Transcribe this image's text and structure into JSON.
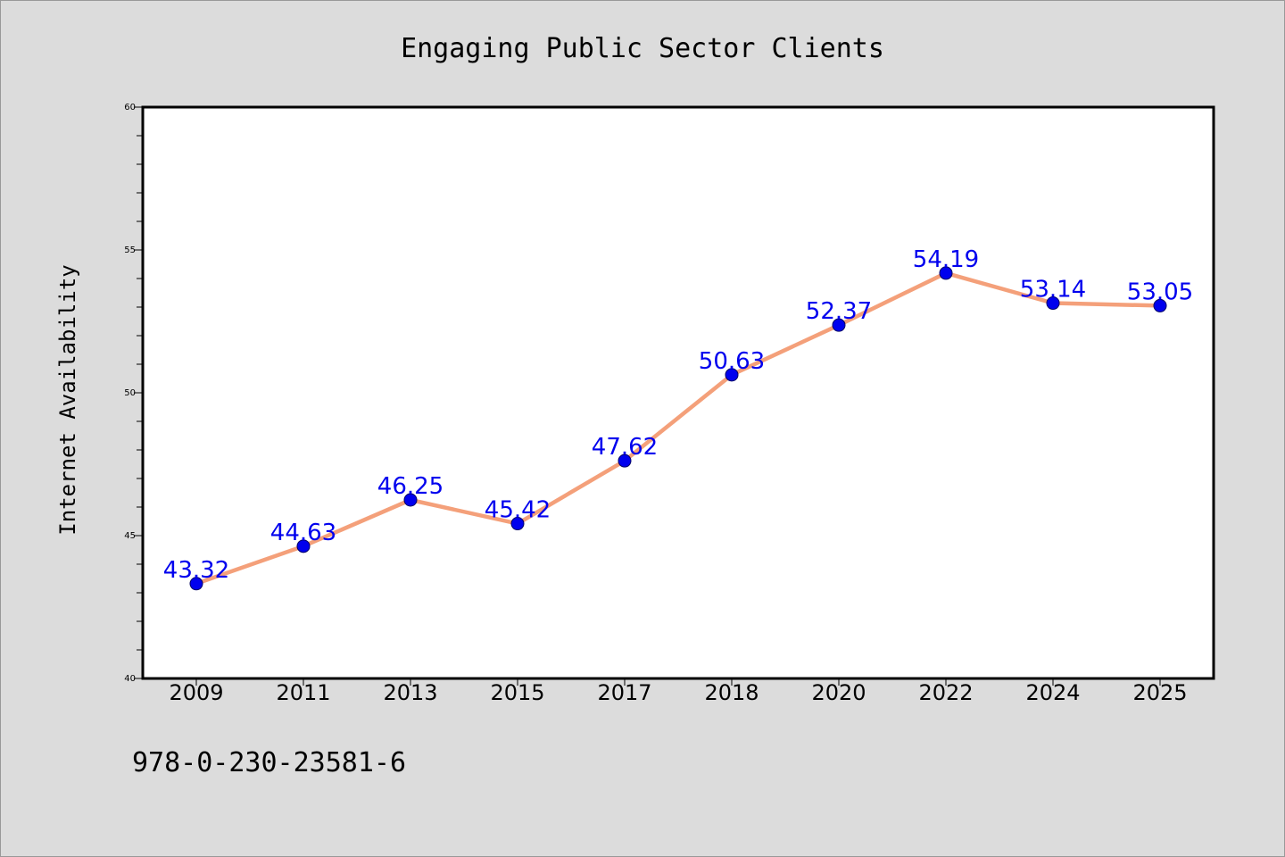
{
  "chart_data": {
    "type": "line",
    "title": "Engaging Public Sector Clients",
    "xlabel": "",
    "ylabel": "Internet Availability",
    "categories": [
      "2009",
      "2011",
      "2013",
      "2015",
      "2017",
      "2018",
      "2020",
      "2022",
      "2024",
      "2025"
    ],
    "series": [
      {
        "values": [
          43.32,
          44.63,
          46.25,
          45.42,
          47.62,
          50.63,
          52.37,
          54.19,
          53.14,
          53.05
        ],
        "data_labels": [
          "43.32",
          "44.63",
          "46.25",
          "45.42",
          "47.62",
          "50.63",
          "52.37",
          "54.19",
          "53.14",
          "53.05"
        ],
        "line_color": "#f4a07a",
        "marker_color": "#0000ee",
        "label_color": "#0000ee"
      }
    ],
    "ylim": [
      40,
      60
    ],
    "yticks": [
      40,
      45,
      50,
      55,
      60
    ],
    "ytick_labels": [
      "40",
      "45",
      "50",
      "55",
      "60"
    ],
    "grid": false,
    "legend": "none"
  },
  "footer": {
    "text": "978-0-230-23581-6"
  },
  "colors": {
    "background": "#dcdcdc",
    "plot_background": "#ffffff",
    "axis": "#000000"
  }
}
